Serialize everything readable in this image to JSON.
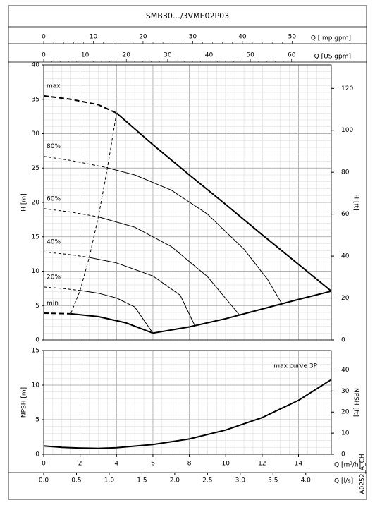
{
  "chart_data": {
    "type": "line",
    "title": "SMB30…/3VME02P03",
    "color": "#000000",
    "grid": true,
    "minor_grid": 4,
    "xlabel": "Q [m³/h]",
    "xlim": [
      0,
      15.8
    ],
    "xticks": [
      0,
      2,
      4,
      6,
      8,
      10,
      12,
      14
    ],
    "x2label": "Q [l/s]",
    "x2lim": [
      0,
      4.39
    ],
    "x2ticks": [
      {
        "value": 0,
        "label": "0.0"
      },
      0.5,
      {
        "value": 1,
        "label": "1.0"
      },
      1.5,
      {
        "value": 2,
        "label": "2.0"
      },
      2.5,
      {
        "value": 3,
        "label": "3.0"
      },
      3.5,
      {
        "value": 4,
        "label": "4.0"
      }
    ],
    "top_axes": [
      {
        "label": "Q [Imp gpm]",
        "lim": [
          0,
          57.9
        ],
        "ticks": [
          0,
          10,
          20,
          30,
          40,
          50
        ]
      },
      {
        "label": "Q [US gpm]",
        "lim": [
          0,
          69.6
        ],
        "ticks": [
          0,
          10,
          20,
          30,
          40,
          50,
          60
        ]
      }
    ],
    "side_note": "A0252_A_CH",
    "panels": [
      {
        "ylabel": "H [m]",
        "ylim": [
          0,
          40
        ],
        "yticks": [
          0,
          5,
          10,
          15,
          20,
          25,
          30,
          35,
          40
        ],
        "y2label": "H [ft]",
        "y2lim": [
          0,
          131.2
        ],
        "y2ticks": [
          0,
          20,
          40,
          60,
          80,
          100,
          120
        ],
        "series": [
          {
            "name": "max",
            "dashed": true,
            "width": 2,
            "x": [
              0,
              1.5,
              3,
              4
            ],
            "values": [
              35.5,
              35,
              34.2,
              33
            ]
          },
          {
            "width": 2,
            "x": [
              4,
              6,
              8,
              10,
              12,
              14,
              15.8
            ],
            "values": [
              33,
              28.4,
              24,
              19.7,
              15.3,
              11,
              7.1
            ]
          },
          {
            "name": "80%",
            "dashed": true,
            "width": 1,
            "x": [
              0,
              1.5,
              3.4
            ],
            "values": [
              26.7,
              26.1,
              25.1
            ]
          },
          {
            "width": 1,
            "x": [
              3.4,
              5,
              7,
              9,
              11,
              12.3,
              13.1
            ],
            "values": [
              25.1,
              24,
              21.8,
              18.3,
              13.2,
              8.8,
              5.2
            ]
          },
          {
            "name": "60%",
            "dashed": true,
            "width": 1,
            "x": [
              0,
              1.5,
              3
            ],
            "values": [
              19.1,
              18.6,
              17.9
            ]
          },
          {
            "width": 1,
            "x": [
              3,
              5,
              7,
              9,
              10.8
            ],
            "values": [
              17.9,
              16.4,
              13.6,
              9.2,
              3.5
            ]
          },
          {
            "name": "40%",
            "dashed": true,
            "width": 1,
            "x": [
              0,
              1.5,
              2.5
            ],
            "values": [
              12.8,
              12.4,
              12
            ]
          },
          {
            "width": 1,
            "x": [
              2.5,
              4,
              6,
              7.5,
              8.3
            ],
            "values": [
              12,
              11.2,
              9.3,
              6.5,
              2.1
            ]
          },
          {
            "name": "20%",
            "dashed": true,
            "width": 1,
            "x": [
              0,
              1,
              2
            ],
            "values": [
              7.7,
              7.5,
              7.2
            ]
          },
          {
            "width": 1,
            "x": [
              2,
              3,
              4,
              5,
              6
            ],
            "values": [
              7.2,
              6.8,
              6.1,
              4.8,
              1
            ]
          },
          {
            "name": "min",
            "dashed": true,
            "width": 2,
            "x": [
              0,
              1.5
            ],
            "values": [
              3.9,
              3.8
            ]
          },
          {
            "width": 2,
            "x": [
              1.5,
              3,
              4.5,
              6
            ],
            "values": [
              3.8,
              3.4,
              2.5,
              1
            ]
          },
          {
            "width": 2,
            "x": [
              6,
              8,
              10,
              12,
              14,
              15.8
            ],
            "values": [
              1,
              1.9,
              3.1,
              4.5,
              5.9,
              7.1
            ]
          },
          {
            "dashed": true,
            "width": 1,
            "x": [
              1.5,
              2,
              2.5,
              3,
              3.5,
              4
            ],
            "values": [
              3.9,
              7.2,
              12,
              17.9,
              25,
              33
            ]
          }
        ]
      },
      {
        "ylabel": "NPSH [m]",
        "ylim": [
          0,
          15
        ],
        "yticks": [
          0,
          5,
          10,
          15
        ],
        "y2label": "NPSH [ft]",
        "y2lim": [
          0,
          49.2
        ],
        "y2ticks": [
          0,
          10,
          20,
          30,
          40
        ],
        "legend": "upper right",
        "series": [
          {
            "name": "max curve 3P",
            "width": 2,
            "x": [
              0,
              1,
              2,
              3,
              4,
              6,
              8,
              10,
              12,
              14,
              15.8
            ],
            "values": [
              1.2,
              1,
              0.9,
              0.85,
              0.95,
              1.4,
              2.2,
              3.5,
              5.3,
              7.8,
              10.8
            ]
          }
        ]
      }
    ]
  }
}
